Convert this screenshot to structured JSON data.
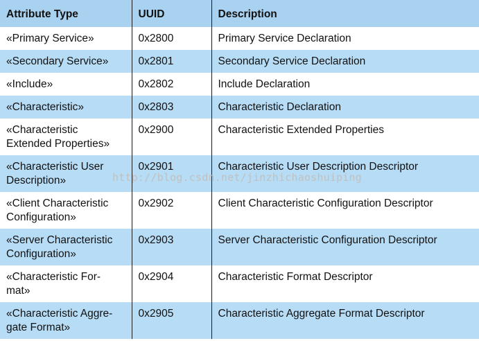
{
  "headers": [
    "Attribute Type",
    "UUID",
    "Description"
  ],
  "rows": [
    {
      "type": "«Primary Service»",
      "uuid": "0x2800",
      "description": "Primary Service Declaration"
    },
    {
      "type": "«Secondary Service»",
      "uuid": "0x2801",
      "description": "Secondary Service Declaration"
    },
    {
      "type": "«Include»",
      "uuid": "0x2802",
      "description": "Include Declaration"
    },
    {
      "type": "«Characteristic»",
      "uuid": "0x2803",
      "description": "Characteristic Declaration"
    },
    {
      "type_lines": [
        "«Characteristic",
        "Extended Properties»"
      ],
      "uuid": "0x2900",
      "description": "Characteristic Extended Properties"
    },
    {
      "type_lines": [
        "«Characteristic User",
        "Description»"
      ],
      "uuid": "0x2901",
      "description": "Characteristic User Description Descriptor"
    },
    {
      "type_lines": [
        "«Client Characteristic",
        "Configuration»"
      ],
      "uuid": "0x2902",
      "description": "Client Characteristic Configuration Descriptor"
    },
    {
      "type_lines": [
        "«Server Characteristic",
        "Configuration»"
      ],
      "uuid": "0x2903",
      "description": "Server Characteristic Configuration Descriptor"
    },
    {
      "type_lines": [
        "«Characteristic For-",
        "mat»"
      ],
      "uuid": "0x2904",
      "description": "Characteristic Format Descriptor"
    },
    {
      "type_lines": [
        "«Characteristic Aggre-",
        "gate Format»"
      ],
      "uuid": "0x2905",
      "description": "Characteristic Aggregate Format Descriptor"
    }
  ],
  "watermark": "http://blog.csdn.net/jinzhichaoshuiping",
  "colors": {
    "header_bg": "#a8d2f0",
    "stripe_bg": "#b7dcf5",
    "row_bg": "#ffffff",
    "grid_line": "#1a1a1a"
  }
}
